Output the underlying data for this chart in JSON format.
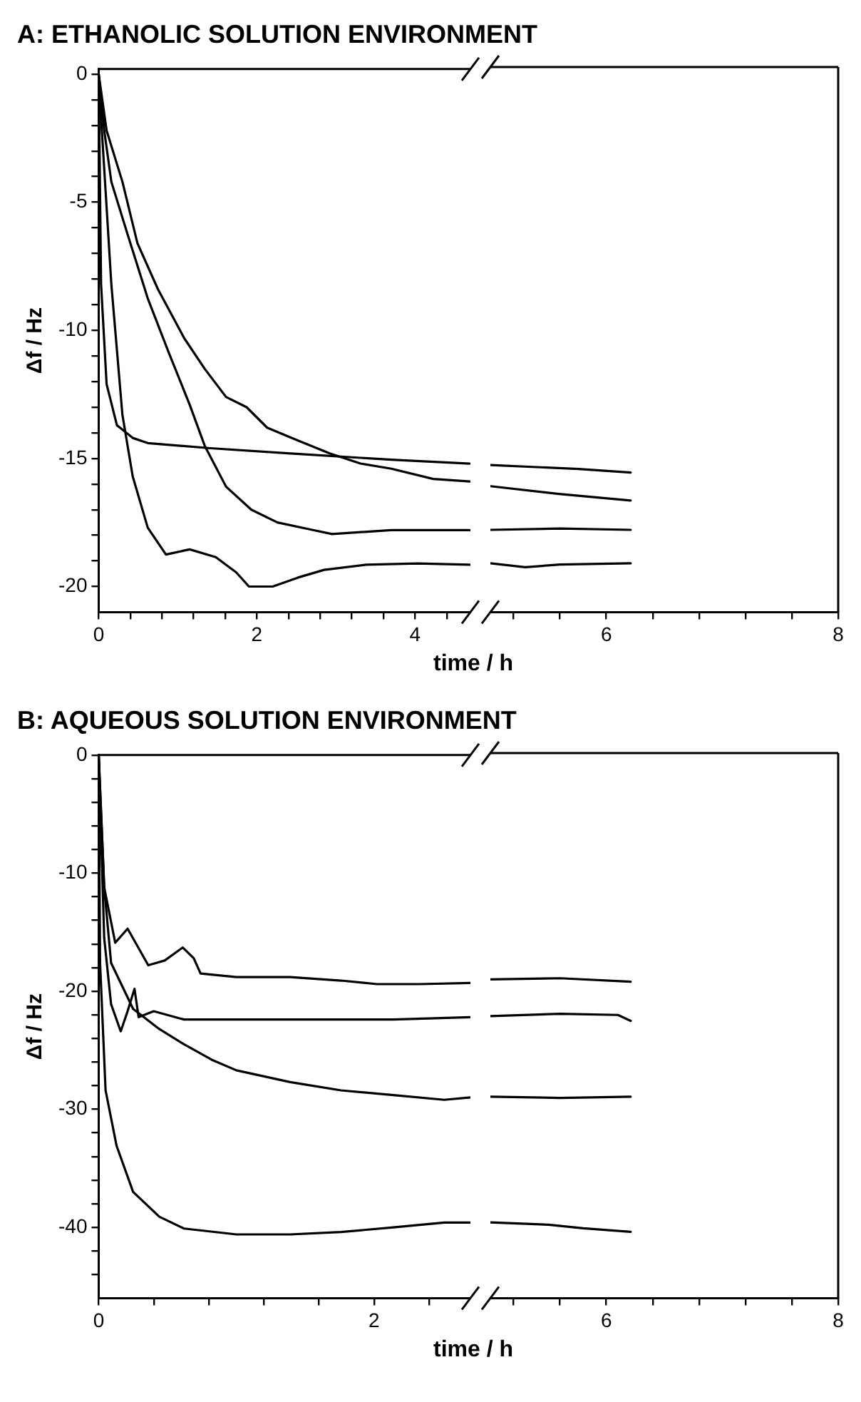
{
  "chart_data": [
    {
      "type": "line",
      "title": "A: ETHANOLIC SOLUTION ENVIRONMENT",
      "xlabel": "time / h",
      "ylabel": "Δf / Hz",
      "marker": "none",
      "line_style": "solid",
      "xlim": [
        0,
        4.7
      ],
      "xticks": [
        0,
        {
          "value": 0.4,
          "label": null
        },
        {
          "value": 0.8,
          "label": null
        },
        {
          "value": 1.2,
          "label": null
        },
        {
          "value": 1.6,
          "label": null
        },
        2,
        {
          "value": 2.4,
          "label": null
        },
        {
          "value": 2.8,
          "label": null
        },
        {
          "value": 3.2,
          "label": null
        },
        {
          "value": 3.6,
          "label": null
        },
        4,
        {
          "value": 4.4,
          "label": null
        }
      ],
      "ylim": [
        -21,
        0.2
      ],
      "yticks": [
        0,
        {
          "value": -1,
          "label": null
        },
        {
          "value": -2,
          "label": null
        },
        {
          "value": -3,
          "label": null
        },
        {
          "value": -4,
          "label": null
        },
        -5,
        {
          "value": -6,
          "label": null
        },
        {
          "value": -7,
          "label": null
        },
        {
          "value": -8,
          "label": null
        },
        {
          "value": -9,
          "label": null
        },
        -10,
        {
          "value": -11,
          "label": null
        },
        {
          "value": -12,
          "label": null
        },
        {
          "value": -13,
          "label": null
        },
        {
          "value": -14,
          "label": null
        },
        -15,
        {
          "value": -16,
          "label": null
        },
        {
          "value": -17,
          "label": null
        },
        {
          "value": -18,
          "label": null
        },
        {
          "value": -19,
          "label": null
        },
        -20
      ],
      "series": [
        {
          "color": "#000000",
          "x": [
            0,
            0.1,
            0.3,
            0.49,
            0.75,
            1.08,
            1.34,
            1.61,
            1.87,
            2.13,
            2.52,
            2.92,
            3.31,
            3.7,
            4.23,
            4.69
          ],
          "values": [
            0,
            -2.2,
            -4.2,
            -6.6,
            -8.4,
            -10.3,
            -11.5,
            -12.6,
            -13,
            -13.8,
            -14.3,
            -14.8,
            -15.2,
            -15.4,
            -15.8,
            -15.9
          ]
        },
        {
          "color": "#000000",
          "x": [
            0,
            0.03,
            0.1,
            0.23,
            0.43,
            0.62,
            1.41,
            2.39,
            3.7,
            4.69
          ],
          "values": [
            0,
            -8.2,
            -12.1,
            -13.7,
            -14.2,
            -14.4,
            -14.6,
            -14.8,
            -15.05,
            -15.2
          ]
        },
        {
          "color": "#000000",
          "x": [
            0,
            0.07,
            0.16,
            0.36,
            0.62,
            0.89,
            1.15,
            1.34,
            1.61,
            1.93,
            2.26,
            2.72,
            2.95,
            3.7,
            4.69
          ],
          "values": [
            0,
            -2.2,
            -4.2,
            -6.2,
            -8.75,
            -10.9,
            -12.9,
            -14.5,
            -16.1,
            -17,
            -17.5,
            -17.8,
            -17.95,
            -17.8,
            -17.8
          ]
        },
        {
          "color": "#000000",
          "x": [
            0,
            0.02,
            0.16,
            0.3,
            0.43,
            0.62,
            0.85,
            1.15,
            1.48,
            1.74,
            1.9,
            2.2,
            2.52,
            2.85,
            3.38,
            4.03,
            4.69
          ],
          "values": [
            0,
            -1.2,
            -8.2,
            -13.3,
            -15.7,
            -17.7,
            -18.75,
            -18.55,
            -18.85,
            -19.45,
            -20,
            -20,
            -19.65,
            -19.35,
            -19.15,
            -19.1,
            -19.15
          ]
        }
      ]
    },
    {
      "type": "line",
      "marker": "none",
      "line_style": "solid",
      "tick_labels": "x",
      "xlim": [
        5,
        8
      ],
      "xticks": [
        {
          "value": 5.2,
          "label": null
        },
        {
          "value": 5.6,
          "label": null
        },
        6,
        {
          "value": 6.4,
          "label": null
        },
        {
          "value": 6.8,
          "label": null
        },
        {
          "value": 7.2,
          "label": null
        },
        {
          "value": 7.6,
          "label": null
        },
        8
      ],
      "ylim": [
        -21,
        0.2
      ],
      "series": [
        {
          "color": "#000000",
          "x": [
            5,
            5.59,
            6.21
          ],
          "values": [
            -16.1,
            -16.4,
            -16.66
          ]
        },
        {
          "color": "#000000",
          "x": [
            5,
            5.76,
            6.21
          ],
          "values": [
            -15.28,
            -15.43,
            -15.57
          ]
        },
        {
          "color": "#000000",
          "x": [
            5,
            5.6,
            6.21
          ],
          "values": [
            -17.8,
            -17.75,
            -17.8
          ]
        },
        {
          "color": "#000000",
          "x": [
            5,
            5.3,
            5.6,
            6.21
          ],
          "values": [
            -19.1,
            -19.25,
            -19.15,
            -19.1
          ]
        }
      ]
    },
    {
      "type": "line",
      "title": "B: AQUEOUS SOLUTION ENVIRONMENT",
      "xlabel": "time / h",
      "ylabel": "Δf / Hz",
      "marker": "none",
      "line_style": "solid",
      "xlim": [
        0,
        2.7
      ],
      "xticks": [
        0,
        {
          "value": 0.4,
          "label": null
        },
        {
          "value": 0.8,
          "label": null
        },
        {
          "value": 1.2,
          "label": null
        },
        {
          "value": 1.6,
          "label": null
        },
        2,
        {
          "value": 2.4,
          "label": null
        }
      ],
      "ylim": [
        -46,
        0
      ],
      "yticks": [
        0,
        {
          "value": -2,
          "label": null
        },
        {
          "value": -4,
          "label": null
        },
        {
          "value": -6,
          "label": null
        },
        {
          "value": -8,
          "label": null
        },
        -10,
        {
          "value": -12,
          "label": null
        },
        {
          "value": -14,
          "label": null
        },
        {
          "value": -16,
          "label": null
        },
        {
          "value": -18,
          "label": null
        },
        -20,
        {
          "value": -22,
          "label": null
        },
        {
          "value": -24,
          "label": null
        },
        {
          "value": -26,
          "label": null
        },
        {
          "value": -28,
          "label": null
        },
        -30,
        {
          "value": -32,
          "label": null
        },
        {
          "value": -34,
          "label": null
        },
        {
          "value": -36,
          "label": null
        },
        {
          "value": -38,
          "label": null
        },
        -40,
        {
          "value": -42,
          "label": null
        },
        {
          "value": -44,
          "label": null
        }
      ],
      "series": [
        {
          "color": "#000000",
          "x": [
            0,
            0.04,
            0.12,
            0.21,
            0.36,
            0.48,
            0.61,
            0.69,
            0.74,
            1.0,
            1.39,
            1.76,
            2.02,
            2.33,
            2.7
          ],
          "values": [
            0,
            -11.2,
            -15.9,
            -14.7,
            -17.8,
            -17.4,
            -16.3,
            -17.2,
            -18.5,
            -18.8,
            -18.8,
            -19.1,
            -19.4,
            -19.4,
            -19.3
          ]
        },
        {
          "color": "#000000",
          "x": [
            0,
            0.04,
            0.09,
            0.16,
            0.21,
            0.26,
            0.29,
            0.4,
            0.62,
            1.39,
            2.14,
            2.7
          ],
          "values": [
            0,
            -15.5,
            -21.1,
            -23.4,
            -21.7,
            -19.8,
            -22.2,
            -21.7,
            -22.4,
            -22.4,
            -22.4,
            -22.2
          ]
        },
        {
          "color": "#000000",
          "x": [
            0,
            0.04,
            0.09,
            0.25,
            0.44,
            0.62,
            0.82,
            1.0,
            1.39,
            1.76,
            2.14,
            2.51,
            2.7
          ],
          "values": [
            0,
            -11.2,
            -17.6,
            -21.5,
            -23.2,
            -24.5,
            -25.8,
            -26.7,
            -27.7,
            -28.4,
            -28.8,
            -29.2,
            -29
          ]
        },
        {
          "color": "#000000",
          "x": [
            0,
            0.01,
            0.05,
            0.13,
            0.25,
            0.44,
            0.62,
            1.0,
            1.39,
            1.76,
            2.14,
            2.51,
            2.7
          ],
          "values": [
            0,
            -17.6,
            -28.4,
            -33.1,
            -37,
            -39.1,
            -40.1,
            -40.6,
            -40.6,
            -40.4,
            -40,
            -39.6,
            -39.6
          ]
        }
      ]
    },
    {
      "type": "line",
      "marker": "none",
      "line_style": "solid",
      "tick_labels": "x",
      "xlim": [
        5,
        8
      ],
      "xticks": [
        {
          "value": 5.2,
          "label": null
        },
        {
          "value": 5.6,
          "label": null
        },
        6,
        {
          "value": 6.4,
          "label": null
        },
        {
          "value": 6.8,
          "label": null
        },
        {
          "value": 7.2,
          "label": null
        },
        {
          "value": 7.6,
          "label": null
        },
        8
      ],
      "ylim": [
        -46,
        0
      ],
      "series": [
        {
          "color": "#000000",
          "x": [
            5,
            5.6,
            6.21
          ],
          "values": [
            -19.1,
            -19.0,
            -19.3
          ]
        },
        {
          "color": "#000000",
          "x": [
            5,
            5.6,
            6.1,
            6.21
          ],
          "values": [
            -22.2,
            -22.0,
            -22.1,
            -22.6
          ]
        },
        {
          "color": "#000000",
          "x": [
            5,
            5.6,
            6.21
          ],
          "values": [
            -29,
            -29.1,
            -29
          ]
        },
        {
          "color": "#000000",
          "x": [
            5,
            5.5,
            5.8,
            6.21
          ],
          "values": [
            -39.6,
            -39.8,
            -40.1,
            -40.4
          ]
        }
      ]
    }
  ]
}
